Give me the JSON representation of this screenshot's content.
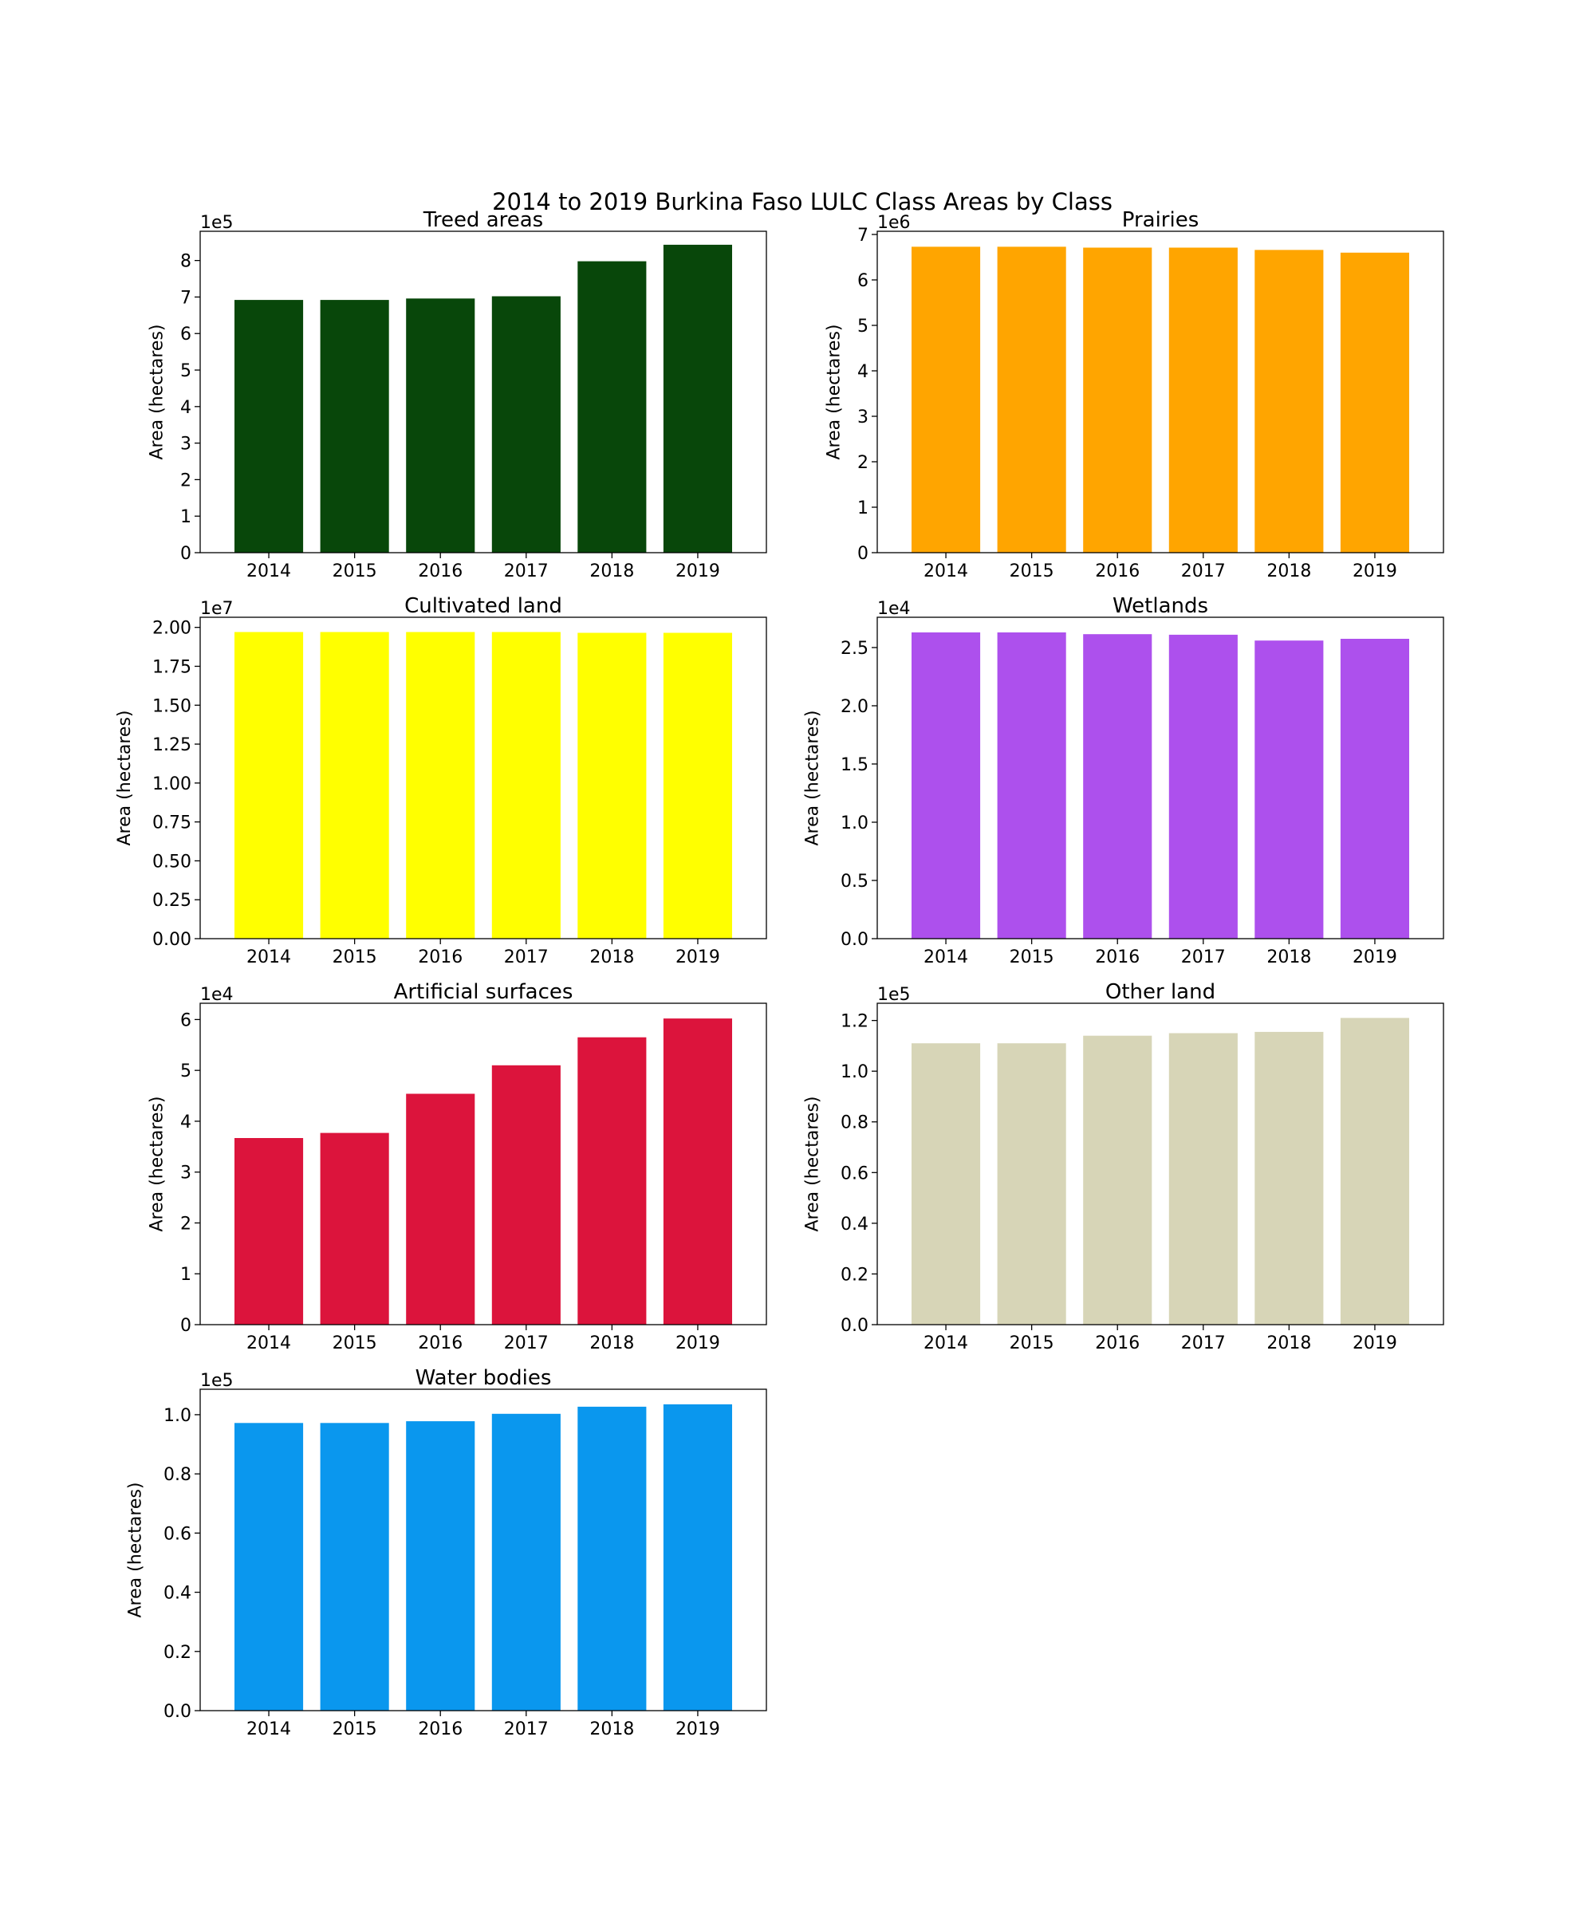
{
  "figure_title": "2014 to 2019 Burkina Faso LULC Class Areas by Class",
  "chart_data": [
    {
      "type": "bar",
      "title": "Treed areas",
      "color": "#08470a",
      "categories": [
        "2014",
        "2015",
        "2016",
        "2017",
        "2018",
        "2019"
      ],
      "values": [
        692000,
        692000,
        696000,
        702000,
        798000,
        843000
      ],
      "ylabel": "Area (hectares)",
      "ylim": [
        0,
        880000
      ],
      "scale_label": "1e5",
      "yticks": [
        0,
        100000,
        200000,
        300000,
        400000,
        500000,
        600000,
        700000,
        800000
      ],
      "ytick_labels": [
        "0",
        "1",
        "2",
        "3",
        "4",
        "5",
        "6",
        "7",
        "8"
      ]
    },
    {
      "type": "bar",
      "title": "Prairies",
      "color": "#ffa500",
      "categories": [
        "2014",
        "2015",
        "2016",
        "2017",
        "2018",
        "2019"
      ],
      "values": [
        6730000,
        6730000,
        6710000,
        6710000,
        6660000,
        6600000
      ],
      "ylabel": "Area (hectares)",
      "ylim": [
        0,
        7070000
      ],
      "scale_label": "1e6",
      "yticks": [
        0,
        1000000,
        2000000,
        3000000,
        4000000,
        5000000,
        6000000,
        7000000
      ],
      "ytick_labels": [
        "0",
        "1",
        "2",
        "3",
        "4",
        "5",
        "6",
        "7"
      ]
    },
    {
      "type": "bar",
      "title": "Cultivated land",
      "color": "#ffff00",
      "categories": [
        "2014",
        "2015",
        "2016",
        "2017",
        "2018",
        "2019"
      ],
      "values": [
        19700000,
        19700000,
        19700000,
        19700000,
        19650000,
        19650000
      ],
      "ylabel": "Area (hectares)",
      "ylim": [
        0,
        20650000
      ],
      "scale_label": "1e7",
      "yticks": [
        0,
        2500000,
        5000000,
        7500000,
        10000000,
        12500000,
        15000000,
        17500000,
        20000000
      ],
      "ytick_labels": [
        "0.00",
        "0.25",
        "0.50",
        "0.75",
        "1.00",
        "1.25",
        "1.50",
        "1.75",
        "2.00"
      ]
    },
    {
      "type": "bar",
      "title": "Wetlands",
      "color": "#ad50ed",
      "categories": [
        "2014",
        "2015",
        "2016",
        "2017",
        "2018",
        "2019"
      ],
      "values": [
        26300,
        26300,
        26150,
        26100,
        25600,
        25750
      ],
      "ylabel": "Area (hectares)",
      "ylim": [
        0,
        27600
      ],
      "scale_label": "1e4",
      "yticks": [
        0,
        5000,
        10000,
        15000,
        20000,
        25000
      ],
      "ytick_labels": [
        "0.0",
        "0.5",
        "1.0",
        "1.5",
        "2.0",
        "2.5"
      ]
    },
    {
      "type": "bar",
      "title": "Artificial surfaces",
      "color": "#dc143c",
      "categories": [
        "2014",
        "2015",
        "2016",
        "2017",
        "2018",
        "2019"
      ],
      "values": [
        36700,
        37700,
        45400,
        51000,
        56500,
        60200
      ],
      "ylabel": "Area (hectares)",
      "ylim": [
        0,
        63200
      ],
      "scale_label": "1e4",
      "yticks": [
        0,
        10000,
        20000,
        30000,
        40000,
        50000,
        60000
      ],
      "ytick_labels": [
        "0",
        "1",
        "2",
        "3",
        "4",
        "5",
        "6"
      ]
    },
    {
      "type": "bar",
      "title": "Other land",
      "color": "#d7d5b7",
      "categories": [
        "2014",
        "2015",
        "2016",
        "2017",
        "2018",
        "2019"
      ],
      "values": [
        111000,
        111000,
        114000,
        115000,
        115500,
        121000
      ],
      "ylabel": "Area (hectares)",
      "ylim": [
        0,
        126800
      ],
      "scale_label": "1e5",
      "yticks": [
        0,
        20000,
        40000,
        60000,
        80000,
        100000,
        120000
      ],
      "ytick_labels": [
        "0.0",
        "0.2",
        "0.4",
        "0.6",
        "0.8",
        "1.0",
        "1.2"
      ]
    },
    {
      "type": "bar",
      "title": "Water bodies",
      "color": "#0a97ee",
      "categories": [
        "2014",
        "2015",
        "2016",
        "2017",
        "2018",
        "2019"
      ],
      "values": [
        97200,
        97200,
        97800,
        100300,
        102700,
        103500
      ],
      "ylabel": "Area (hectares)",
      "ylim": [
        0,
        108600
      ],
      "scale_label": "1e5",
      "yticks": [
        0,
        20000,
        40000,
        60000,
        80000,
        100000
      ],
      "ytick_labels": [
        "0.0",
        "0.2",
        "0.4",
        "0.6",
        "0.8",
        "1.0"
      ]
    }
  ]
}
